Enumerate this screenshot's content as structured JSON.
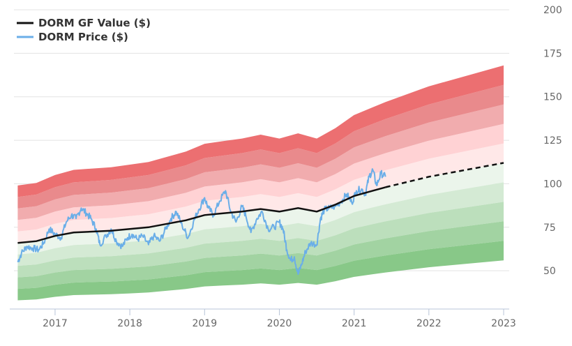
{
  "chart_data": {
    "type": "area",
    "title": "",
    "xlabel": "",
    "ylabel": "",
    "xlim": [
      2016.45,
      2023.0
    ],
    "ylim": [
      28,
      200
    ],
    "x_ticks": [
      "2017",
      "2018",
      "2019",
      "2020",
      "2021",
      "2022",
      "2023"
    ],
    "y_ticks": [
      50,
      75,
      100,
      125,
      150,
      175,
      200
    ],
    "y_axis_side": "right",
    "grid": "horizontal",
    "legend_position": "top-left",
    "legend": [
      {
        "label": "DORM GF Value ($)",
        "color": "#111111",
        "style": "solid"
      },
      {
        "label": "DORM Price ($)",
        "color": "#6aaee8",
        "style": "solid"
      }
    ],
    "gf_value": {
      "name": "DORM GF Value ($)",
      "x": [
        2016.5,
        2016.75,
        2017.0,
        2017.25,
        2017.5,
        2017.75,
        2018.0,
        2018.25,
        2018.5,
        2018.75,
        2019.0,
        2019.25,
        2019.5,
        2019.75,
        2020.0,
        2020.25,
        2020.5,
        2020.75,
        2021.0,
        2021.25,
        2021.42
      ],
      "values": [
        66,
        67,
        70,
        72,
        72.5,
        73,
        74,
        75,
        77,
        79,
        82,
        83,
        84,
        85.5,
        84,
        86,
        84,
        88,
        93,
        96,
        98
      ]
    },
    "gf_value_projection": {
      "style": "dashed",
      "x": [
        2021.42,
        2022.0,
        2023.0
      ],
      "values": [
        98,
        104,
        112
      ]
    },
    "bands": {
      "upper_multipliers": [
        1.1,
        1.2,
        1.3,
        1.4,
        1.5
      ],
      "lower_multipliers": [
        0.9,
        0.8,
        0.7,
        0.6,
        0.5
      ],
      "upper_colors": [
        "#ffe8e8",
        "#ffd2d4",
        "#f1acae",
        "#e98a8c",
        "#ec6f71"
      ],
      "lower_colors": [
        "#ebf5eb",
        "#d4ead4",
        "#bcdfbc",
        "#a2d3a2",
        "#88c888"
      ]
    },
    "price": {
      "name": "DORM Price ($)",
      "x": [
        2016.5,
        2016.55,
        2016.62,
        2016.7,
        2016.78,
        2016.85,
        2016.92,
        2017.0,
        2017.08,
        2017.15,
        2017.22,
        2017.28,
        2017.35,
        2017.42,
        2017.48,
        2017.55,
        2017.6,
        2017.68,
        2017.75,
        2017.82,
        2017.9,
        2017.97,
        2018.03,
        2018.1,
        2018.17,
        2018.25,
        2018.32,
        2018.4,
        2018.48,
        2018.55,
        2018.62,
        2018.7,
        2018.78,
        2018.85,
        2018.92,
        2019.0,
        2019.05,
        2019.12,
        2019.2,
        2019.28,
        2019.35,
        2019.42,
        2019.5,
        2019.55,
        2019.62,
        2019.7,
        2019.77,
        2019.85,
        2019.93,
        2020.0,
        2020.05,
        2020.1,
        2020.15,
        2020.2,
        2020.25,
        2020.3,
        2020.35,
        2020.42,
        2020.5,
        2020.55,
        2020.6,
        2020.67,
        2020.75,
        2020.83,
        2020.9,
        2020.97,
        2021.03,
        2021.1,
        2021.15,
        2021.2,
        2021.25,
        2021.3,
        2021.36,
        2021.42
      ],
      "values": [
        55,
        60,
        64,
        63,
        62,
        66,
        74,
        71,
        69,
        78,
        82,
        80,
        86,
        83,
        80,
        74,
        65,
        70,
        74,
        67,
        64,
        69,
        71,
        68,
        70,
        65,
        70,
        67,
        74,
        80,
        84,
        76,
        69,
        78,
        85,
        92,
        86,
        82,
        90,
        96,
        84,
        78,
        87,
        82,
        72,
        80,
        84,
        74,
        75,
        78,
        74,
        62,
        56,
        58,
        48,
        54,
        61,
        66,
        65,
        80,
        85,
        86,
        87,
        90,
        94,
        89,
        96,
        97,
        94,
        104,
        108,
        99,
        106,
        104
      ]
    }
  }
}
